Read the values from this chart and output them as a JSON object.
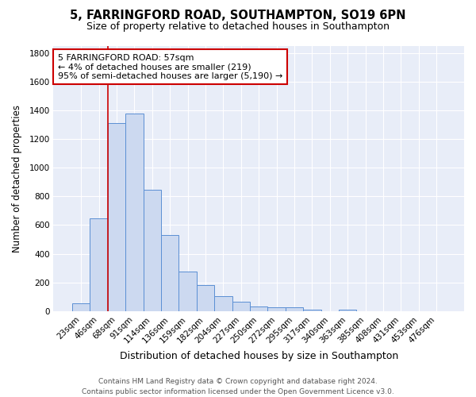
{
  "title1": "5, FARRINGFORD ROAD, SOUTHAMPTON, SO19 6PN",
  "title2": "Size of property relative to detached houses in Southampton",
  "xlabel": "Distribution of detached houses by size in Southampton",
  "ylabel": "Number of detached properties",
  "categories": [
    "23sqm",
    "46sqm",
    "68sqm",
    "91sqm",
    "114sqm",
    "136sqm",
    "159sqm",
    "182sqm",
    "204sqm",
    "227sqm",
    "250sqm",
    "272sqm",
    "295sqm",
    "317sqm",
    "340sqm",
    "363sqm",
    "385sqm",
    "408sqm",
    "431sqm",
    "453sqm",
    "476sqm"
  ],
  "values": [
    55,
    645,
    1310,
    1375,
    845,
    530,
    275,
    185,
    105,
    65,
    35,
    30,
    25,
    12,
    0,
    12,
    0,
    0,
    0,
    0,
    0
  ],
  "bar_color": "#ccd9f0",
  "bar_edge_color": "#5b8fd4",
  "bg_color": "#e8edf8",
  "grid_color": "#ffffff",
  "annotation_text": "5 FARRINGFORD ROAD: 57sqm\n← 4% of detached houses are smaller (219)\n95% of semi-detached houses are larger (5,190) →",
  "annotation_box_color": "#ffffff",
  "annotation_box_edge": "#cc0000",
  "ylim": [
    0,
    1850
  ],
  "yticks": [
    0,
    200,
    400,
    600,
    800,
    1000,
    1200,
    1400,
    1600,
    1800
  ],
  "footnote": "Contains HM Land Registry data © Crown copyright and database right 2024.\nContains public sector information licensed under the Open Government Licence v3.0.",
  "title1_fontsize": 10.5,
  "title2_fontsize": 9,
  "xlabel_fontsize": 9,
  "ylabel_fontsize": 8.5,
  "tick_fontsize": 7.5,
  "annot_fontsize": 8,
  "footnote_fontsize": 6.5,
  "red_line_x": 1.52
}
